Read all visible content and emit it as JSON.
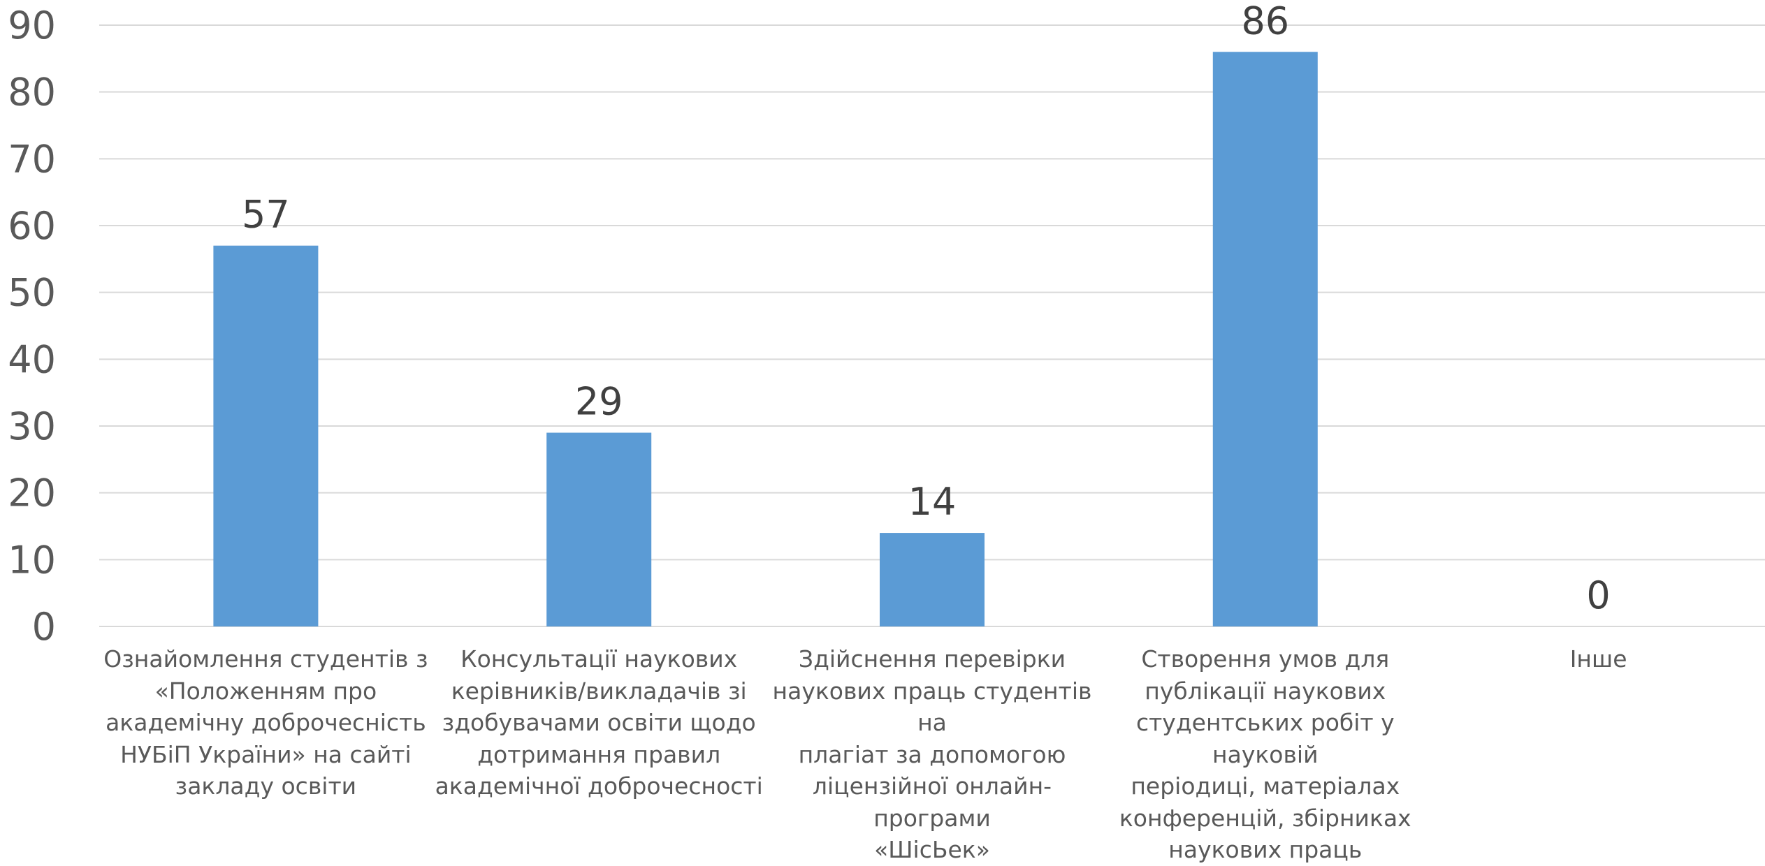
{
  "chart_data": {
    "type": "bar",
    "categories": [
      "Ознайомлення студентів з «Положенням про академічну доброчесність НУБіП України» на сайті закладу освіти",
      "Консультації наукових керівників/викладачів зі здобувачами освіти щодо дотримання правил академічної доброчесності",
      "Здійснення перевірки наукових праць студентів на плагіат за допомогою ліцензійної онлайн-програми «ШісЬек»",
      "Створення умов для публікації наукових студентських робіт у науковій періодиці, матеріалах конференцій, збірниках наукових праць",
      "Інше"
    ],
    "category_lines": [
      [
        "Ознайомлення студентів з",
        "«Положенням про",
        "академічну доброчесність",
        "НУБіП України» на сайті",
        "закладу освіти"
      ],
      [
        "Консультації наукових",
        "керівників/викладачів зі",
        "здобувачами освіти щодо",
        "дотримання правил",
        "академічної доброчесності"
      ],
      [
        "Здійснення перевірки",
        "наукових праць студентів на",
        "плагіат за допомогою",
        "ліцензійної онлайн-програми",
        "«ШісЬек»"
      ],
      [
        "Створення умов для",
        "публікації наукових",
        "студентських робіт у науковій",
        "періодиці, матеріалах",
        "конференцій, збірниках",
        "наукових праць"
      ],
      [
        "Інше"
      ]
    ],
    "values": [
      57,
      29,
      14,
      86,
      0
    ],
    "data_labels": [
      "57",
      "29",
      "14",
      "86",
      "0"
    ],
    "ylim": [
      0,
      90
    ],
    "yticks": [
      "0",
      "10",
      "20",
      "30",
      "40",
      "50",
      "60",
      "70",
      "80",
      "90"
    ],
    "grid": true,
    "bar_color": "#5b9bd5",
    "title": "",
    "xlabel": "",
    "ylabel": ""
  }
}
